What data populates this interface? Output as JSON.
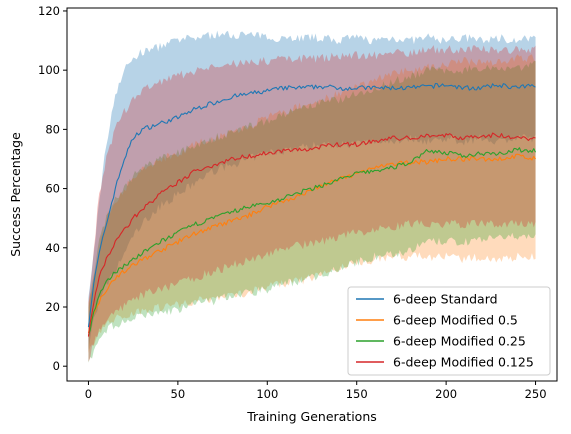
{
  "chart_data": {
    "type": "line",
    "title": "",
    "xlabel": "Training Generations",
    "ylabel": "Success Percentage",
    "xlim": [
      -12,
      262
    ],
    "ylim": [
      -5,
      121
    ],
    "xticks": [
      0,
      50,
      100,
      150,
      200,
      250
    ],
    "yticks": [
      0,
      20,
      40,
      60,
      80,
      100,
      120
    ],
    "grid": false,
    "legend_position": "bottom-right",
    "series": [
      {
        "name": "6-deep Standard",
        "color": "#1f77b4",
        "x": [
          0,
          3,
          6,
          10,
          15,
          20,
          25,
          30,
          40,
          50,
          60,
          70,
          80,
          90,
          100,
          110,
          120,
          130,
          140,
          150,
          160,
          170,
          180,
          190,
          200,
          210,
          220,
          230,
          240,
          250
        ],
        "mean": [
          14,
          28,
          38,
          48,
          60,
          70,
          77,
          80,
          82,
          84,
          87,
          89,
          91,
          92,
          93,
          94,
          94,
          94.5,
          94,
          94,
          94,
          94,
          94,
          94.5,
          95,
          94,
          94,
          95,
          94,
          95
        ],
        "upper": [
          22,
          38,
          56,
          75,
          92,
          100,
          104,
          106,
          108,
          110,
          111,
          112,
          112,
          112,
          111,
          111,
          111,
          111,
          110,
          111,
          110,
          111,
          110,
          111,
          110,
          111,
          110,
          111,
          110,
          111
        ],
        "lower": [
          6,
          16,
          22,
          27,
          32,
          38,
          44,
          48,
          54,
          58,
          62,
          66,
          68,
          70,
          72,
          73,
          74,
          75,
          75,
          75,
          76,
          76,
          77,
          76,
          77,
          76,
          77,
          76,
          77,
          77
        ]
      },
      {
        "name": "6-deep Modified 0.5",
        "color": "#ff7f0e",
        "x": [
          0,
          3,
          6,
          10,
          15,
          20,
          25,
          30,
          40,
          50,
          60,
          70,
          80,
          90,
          100,
          110,
          120,
          130,
          140,
          150,
          160,
          170,
          180,
          190,
          200,
          210,
          220,
          230,
          240,
          250
        ],
        "mean": [
          12,
          18,
          22,
          26,
          30,
          32,
          34,
          36,
          39,
          42,
          45,
          47,
          49,
          51,
          54,
          56,
          58,
          61,
          63,
          65,
          67,
          68,
          69,
          69,
          70,
          70,
          70,
          70,
          71,
          70
        ],
        "upper": [
          20,
          30,
          40,
          50,
          56,
          60,
          63,
          66,
          70,
          72,
          75,
          77,
          79,
          81,
          84,
          86,
          88,
          90,
          92,
          94,
          97,
          99,
          100,
          101,
          102,
          103,
          103,
          103,
          104,
          104
        ],
        "lower": [
          4,
          8,
          12,
          14,
          16,
          17,
          18,
          19,
          20,
          21,
          22,
          23,
          24,
          25,
          27,
          28,
          29,
          31,
          33,
          35,
          36,
          37,
          37,
          37,
          37,
          36,
          37,
          36,
          37,
          37
        ]
      },
      {
        "name": "6-deep Modified 0.25",
        "color": "#2ca02c",
        "x": [
          0,
          3,
          6,
          10,
          15,
          20,
          25,
          30,
          40,
          50,
          60,
          70,
          80,
          90,
          100,
          110,
          120,
          130,
          140,
          150,
          160,
          170,
          180,
          190,
          200,
          210,
          220,
          230,
          240,
          250
        ],
        "mean": [
          10,
          18,
          24,
          28,
          32,
          34,
          36,
          38,
          42,
          45,
          48,
          50,
          52,
          54,
          55,
          57,
          59,
          61,
          63,
          65,
          66,
          67,
          69,
          73,
          72,
          71,
          72,
          72,
          73,
          73
        ],
        "upper": [
          20,
          32,
          44,
          50,
          56,
          60,
          64,
          67,
          70,
          72,
          75,
          77,
          79,
          81,
          83,
          85,
          87,
          89,
          90,
          92,
          94,
          96,
          98,
          100,
          100,
          100,
          101,
          101,
          101,
          102
        ],
        "lower": [
          2,
          5,
          8,
          12,
          14,
          15,
          16,
          17,
          18,
          19,
          21,
          22,
          24,
          25,
          26,
          28,
          29,
          31,
          33,
          35,
          37,
          38,
          39,
          42,
          42,
          42,
          43,
          43,
          44,
          44
        ]
      },
      {
        "name": "6-deep Modified 0.125",
        "color": "#d62728",
        "x": [
          0,
          3,
          6,
          10,
          15,
          20,
          25,
          30,
          40,
          50,
          60,
          70,
          80,
          90,
          100,
          110,
          120,
          130,
          140,
          150,
          160,
          170,
          180,
          190,
          200,
          210,
          220,
          230,
          240,
          250
        ],
        "mean": [
          10,
          22,
          30,
          36,
          42,
          46,
          50,
          53,
          58,
          62,
          66,
          68,
          70,
          71,
          72,
          73,
          73,
          74,
          75,
          75,
          76,
          77,
          77,
          78,
          78,
          77,
          78,
          78,
          77,
          77
        ],
        "upper": [
          22,
          40,
          58,
          70,
          80,
          86,
          90,
          93,
          96,
          98,
          100,
          101,
          102,
          103,
          103,
          104,
          104,
          104,
          105,
          105,
          105,
          106,
          106,
          107,
          107,
          107,
          107,
          107,
          107,
          107
        ],
        "lower": [
          2,
          8,
          12,
          16,
          18,
          20,
          22,
          24,
          26,
          28,
          30,
          32,
          34,
          36,
          38,
          40,
          41,
          42,
          44,
          45,
          46,
          47,
          48,
          48,
          48,
          48,
          48,
          48,
          48,
          48
        ]
      }
    ]
  }
}
